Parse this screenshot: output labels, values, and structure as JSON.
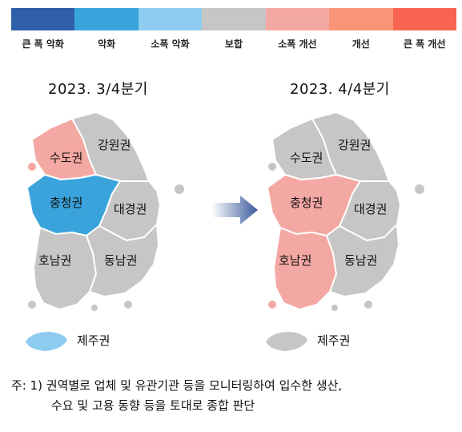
{
  "legend": [
    {
      "label": "큰 폭 악화",
      "color": "#2f5fa8"
    },
    {
      "label": "악화",
      "color": "#3aa3db"
    },
    {
      "label": "소폭 악화",
      "color": "#8dccef"
    },
    {
      "label": "보합",
      "color": "#c6c6c6"
    },
    {
      "label": "소폭 개선",
      "color": "#f4a8a3"
    },
    {
      "label": "개선",
      "color": "#f99577"
    },
    {
      "label": "큰 폭 개선",
      "color": "#f76450"
    }
  ],
  "maps": {
    "left": {
      "period": "2023. 3/4분기",
      "regions": {
        "sudo": {
          "label": "수도권",
          "color": "#f4a8a3"
        },
        "gangwon": {
          "label": "강원권",
          "color": "#c6c6c6"
        },
        "chungcheong": {
          "label": "충청권",
          "color": "#3aa3db"
        },
        "daegyeong": {
          "label": "대경권",
          "color": "#c6c6c6"
        },
        "honam": {
          "label": "호남권",
          "color": "#c6c6c6"
        },
        "dongnam": {
          "label": "동남권",
          "color": "#c6c6c6"
        },
        "jeju": {
          "label": "제주권",
          "color": "#8dccef"
        }
      }
    },
    "right": {
      "period": "2023. 4/4분기",
      "regions": {
        "sudo": {
          "label": "수도권",
          "color": "#c6c6c6"
        },
        "gangwon": {
          "label": "강원권",
          "color": "#c6c6c6"
        },
        "chungcheong": {
          "label": "충청권",
          "color": "#f4a8a3"
        },
        "daegyeong": {
          "label": "대경권",
          "color": "#c6c6c6"
        },
        "honam": {
          "label": "호남권",
          "color": "#f4a8a3"
        },
        "dongnam": {
          "label": "동남권",
          "color": "#c6c6c6"
        },
        "jeju": {
          "label": "제주권",
          "color": "#c6c6c6"
        }
      }
    }
  },
  "note": {
    "line1": "주: 1) 권역별로 업체 및 유관기관 등을 모니터링하여 입수한 생산,",
    "line2": "수요 및 고용 동향 등을 토대로 종합 판단"
  }
}
